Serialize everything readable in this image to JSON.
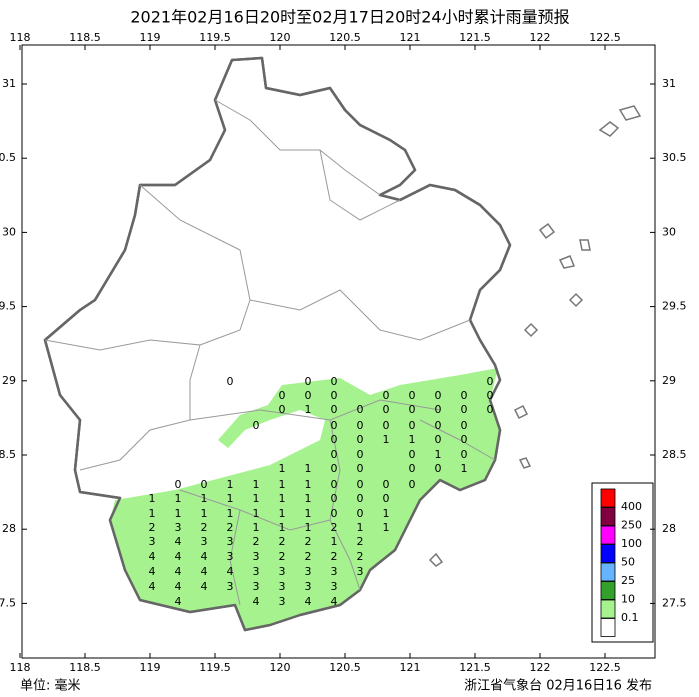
{
  "header": {
    "title": "2021年02月16日20时至02月17日20时24小时累计雨量预报"
  },
  "map": {
    "lon_ticks": [
      118,
      118.5,
      119,
      119.5,
      120,
      120.5,
      121,
      121.5,
      122,
      122.5
    ],
    "lat_ticks": [
      31,
      30.5,
      30,
      29.5,
      29,
      28.5,
      28,
      27.5
    ],
    "grid_values": [
      [
        null,
        null,
        null,
        0,
        null,
        null,
        0,
        0,
        null,
        null,
        null,
        null,
        null,
        0
      ],
      [
        null,
        null,
        null,
        null,
        null,
        0,
        0,
        0,
        null,
        0,
        0,
        0,
        0,
        0
      ],
      [
        null,
        null,
        null,
        null,
        null,
        0,
        1,
        0,
        0,
        0,
        0,
        0,
        0,
        0
      ],
      [
        null,
        null,
        null,
        null,
        0,
        null,
        null,
        0,
        0,
        0,
        0,
        0,
        0,
        null
      ],
      [
        null,
        null,
        null,
        null,
        null,
        null,
        null,
        0,
        0,
        1,
        1,
        0,
        0,
        null
      ],
      [
        null,
        null,
        null,
        null,
        null,
        null,
        null,
        0,
        0,
        null,
        0,
        1,
        0,
        null
      ],
      [
        null,
        null,
        null,
        null,
        null,
        1,
        1,
        0,
        0,
        null,
        0,
        0,
        1,
        null
      ],
      [
        null,
        0,
        0,
        1,
        1,
        1,
        1,
        0,
        0,
        0,
        0,
        null,
        null,
        null
      ],
      [
        1,
        1,
        1,
        1,
        1,
        1,
        1,
        0,
        0,
        0,
        null,
        null,
        null,
        null
      ],
      [
        1,
        1,
        1,
        1,
        1,
        1,
        1,
        0,
        0,
        1,
        null,
        null,
        null,
        null
      ],
      [
        2,
        3,
        2,
        2,
        1,
        1,
        1,
        2,
        1,
        1,
        null,
        null,
        null,
        null
      ],
      [
        3,
        4,
        3,
        3,
        2,
        2,
        2,
        1,
        2,
        null,
        null,
        null,
        null,
        null
      ],
      [
        4,
        4,
        4,
        3,
        3,
        2,
        2,
        2,
        2,
        null,
        null,
        null,
        null,
        null
      ],
      [
        4,
        4,
        4,
        4,
        3,
        3,
        3,
        3,
        3,
        null,
        null,
        null,
        null,
        null
      ],
      [
        4,
        4,
        4,
        3,
        3,
        3,
        3,
        3,
        null,
        null,
        null,
        null,
        null,
        null
      ],
      [
        null,
        4,
        null,
        null,
        4,
        3,
        4,
        4,
        null,
        null,
        null,
        null,
        null,
        null
      ]
    ]
  },
  "legend": {
    "colors": [
      "#ff0000",
      "#800040",
      "#ff00ff",
      "#0000ff",
      "#66b3ff",
      "#33a02c",
      "#a6f28f",
      "#ffffff"
    ],
    "labels": [
      400,
      250,
      100,
      50,
      25,
      10,
      0.1
    ]
  },
  "footer": {
    "unit": "单位: 毫米",
    "issuer": "浙江省气象台 02月16日16 发布"
  }
}
